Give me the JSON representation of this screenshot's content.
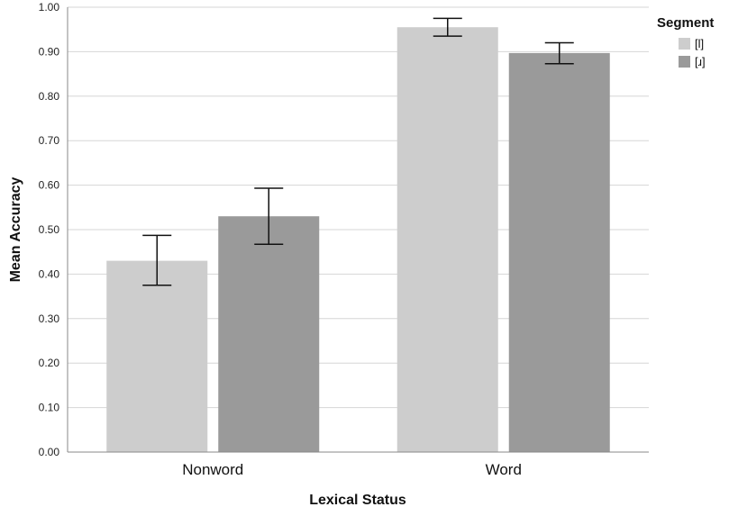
{
  "chart_data": {
    "type": "bar",
    "categories": [
      "Nonword",
      "Word"
    ],
    "series": [
      {
        "name": "[l]",
        "color": "#cdcdcd",
        "values": [
          0.43,
          0.955
        ],
        "error_low": [
          0.375,
          0.935
        ],
        "error_high": [
          0.487,
          0.975
        ]
      },
      {
        "name": "[ɹ]",
        "color": "#9a9a9a",
        "values": [
          0.53,
          0.897
        ],
        "error_low": [
          0.467,
          0.873
        ],
        "error_high": [
          0.593,
          0.92
        ]
      }
    ],
    "ylim": [
      0,
      1
    ],
    "yticks": [
      "0.00",
      "0.10",
      "0.20",
      "0.30",
      "0.40",
      "0.50",
      "0.60",
      "0.70",
      "0.80",
      "0.90",
      "1.00"
    ],
    "xlabel": "Lexical Status",
    "ylabel": "Mean Accuracy",
    "legend_title": "Segment",
    "legend_position": "top-right",
    "grid": true,
    "grid_color": "#d6d6d6",
    "axis_color": "#8a8a8a",
    "error_bar_color": "#111111"
  }
}
